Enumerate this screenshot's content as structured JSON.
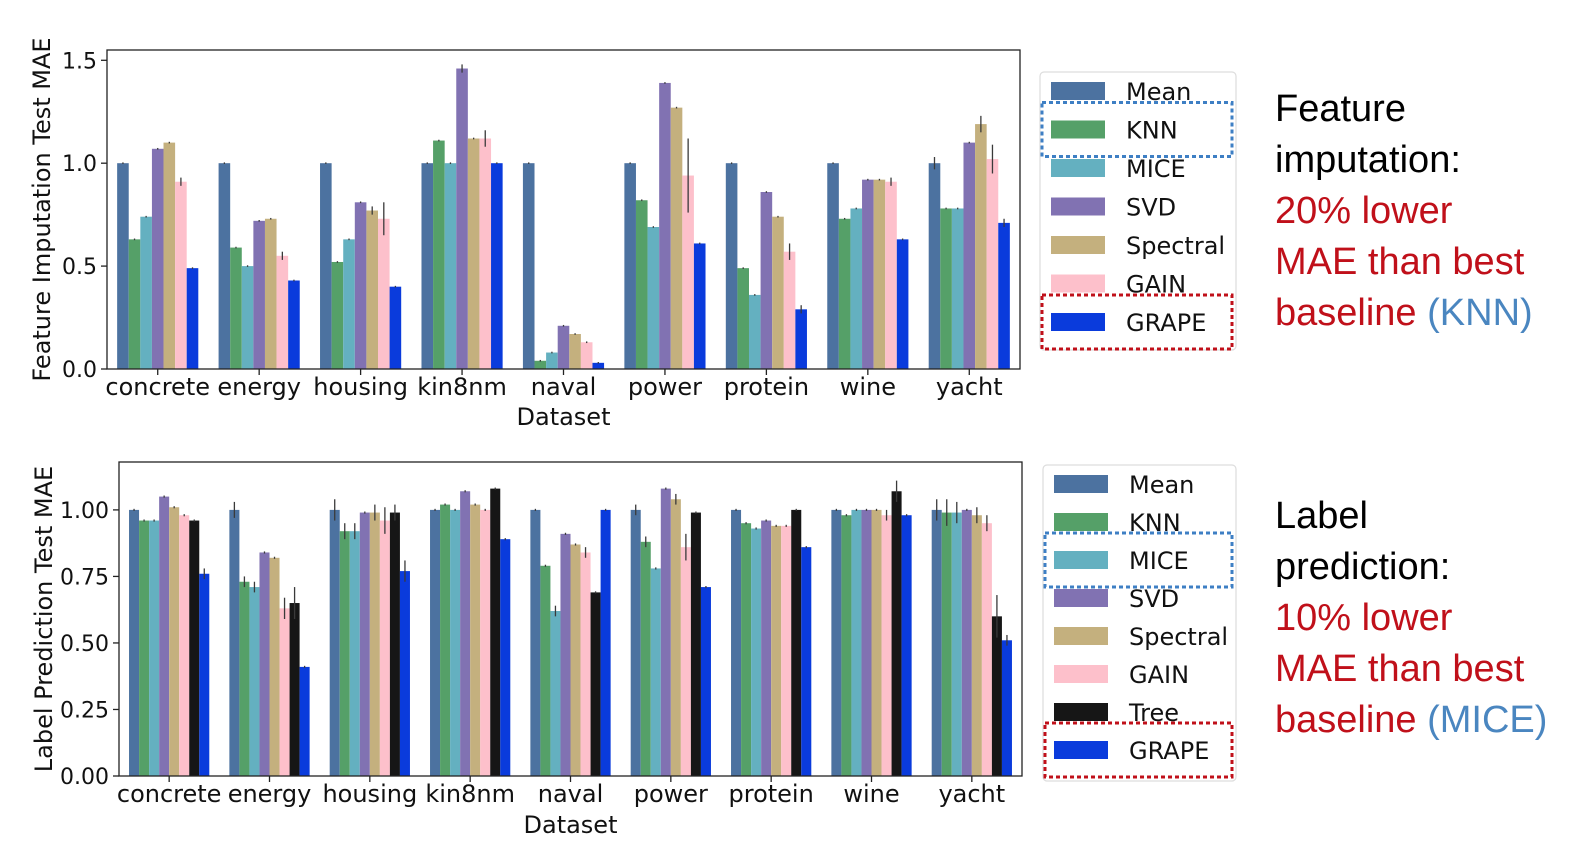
{
  "colors": {
    "Mean": "#4c72a0",
    "KNN": "#55a068",
    "MICE": "#64b0c0",
    "SVD": "#8172b2",
    "Spectral": "#c4b07e",
    "GAIN": "#fdc0cb",
    "Tree": "#161616",
    "GRAPE": "#0a3bdc",
    "highlight_blue": "#3e7fc4",
    "highlight_red": "#c0101a"
  },
  "chart_data": [
    {
      "type": "bar",
      "ylabel": "Feature Imputation Test MAE",
      "xlabel": "Dataset",
      "ylim": [
        0,
        1.55
      ],
      "yticks": [
        "0.0",
        "0.5",
        "1.0",
        "1.5"
      ],
      "ytick_values": [
        0,
        0.5,
        1.0,
        1.5
      ],
      "categories": [
        "concrete",
        "energy",
        "housing",
        "kin8nm",
        "naval",
        "power",
        "protein",
        "wine",
        "yacht"
      ],
      "legend_highlight_blue": "KNN",
      "legend_highlight_red": "GRAPE",
      "series": [
        {
          "name": "Mean",
          "values": [
            1.0,
            1.0,
            1.0,
            1.0,
            1.0,
            1.0,
            1.0,
            1.0,
            1.0
          ],
          "err": [
            0,
            0,
            0,
            0,
            0,
            0,
            0,
            0,
            0.03
          ]
        },
        {
          "name": "KNN",
          "values": [
            0.63,
            0.59,
            0.52,
            1.11,
            0.04,
            0.82,
            0.49,
            0.73,
            0.78
          ],
          "err": [
            0,
            0,
            0,
            0,
            0,
            0,
            0,
            0,
            0
          ]
        },
        {
          "name": "MICE",
          "values": [
            0.74,
            0.5,
            0.63,
            1.0,
            0.08,
            0.69,
            0.36,
            0.78,
            0.78
          ],
          "err": [
            0,
            0,
            0,
            0,
            0,
            0,
            0,
            0,
            0
          ]
        },
        {
          "name": "SVD",
          "values": [
            1.07,
            0.72,
            0.81,
            1.46,
            0.21,
            1.39,
            0.86,
            0.92,
            1.1
          ],
          "err": [
            0,
            0,
            0,
            0.02,
            0,
            0,
            0,
            0,
            0
          ]
        },
        {
          "name": "Spectral",
          "values": [
            1.1,
            0.73,
            0.77,
            1.12,
            0.17,
            1.27,
            0.74,
            0.92,
            1.19
          ],
          "err": [
            0,
            0,
            0.02,
            0,
            0,
            0,
            0,
            0,
            0.04
          ]
        },
        {
          "name": "GAIN",
          "values": [
            0.91,
            0.55,
            0.73,
            1.12,
            0.13,
            0.94,
            0.57,
            0.91,
            1.02
          ],
          "err": [
            0.02,
            0.02,
            0.08,
            0.04,
            0,
            0.18,
            0.04,
            0.02,
            0.07
          ]
        },
        {
          "name": "GRAPE",
          "values": [
            0.49,
            0.43,
            0.4,
            1.0,
            0.03,
            0.61,
            0.29,
            0.63,
            0.71
          ],
          "err": [
            0,
            0,
            0,
            0,
            0,
            0,
            0.02,
            0,
            0.02
          ]
        }
      ]
    },
    {
      "type": "bar",
      "ylabel": "Label Prediction Test MAE",
      "xlabel": "Dataset",
      "ylim": [
        0,
        1.18
      ],
      "yticks": [
        "0.00",
        "0.25",
        "0.50",
        "0.75",
        "1.00"
      ],
      "ytick_values": [
        0,
        0.25,
        0.5,
        0.75,
        1.0
      ],
      "categories": [
        "concrete",
        "energy",
        "housing",
        "kin8nm",
        "naval",
        "power",
        "protein",
        "wine",
        "yacht"
      ],
      "legend_highlight_blue": "MICE",
      "legend_highlight_red": "GRAPE",
      "series": [
        {
          "name": "Mean",
          "values": [
            1.0,
            1.0,
            1.0,
            1.0,
            1.0,
            1.0,
            1.0,
            1.0,
            1.0
          ],
          "err": [
            0,
            0.03,
            0.04,
            0,
            0,
            0.02,
            0,
            0,
            0.04
          ]
        },
        {
          "name": "KNN",
          "values": [
            0.96,
            0.73,
            0.92,
            1.02,
            0.79,
            0.88,
            0.95,
            0.98,
            0.99
          ],
          "err": [
            0,
            0.02,
            0.03,
            0,
            0,
            0.02,
            0,
            0,
            0.05
          ]
        },
        {
          "name": "MICE",
          "values": [
            0.96,
            0.71,
            0.92,
            1.0,
            0.62,
            0.78,
            0.93,
            1.0,
            0.99
          ],
          "err": [
            0,
            0.02,
            0.03,
            0,
            0.02,
            0,
            0,
            0,
            0.04
          ]
        },
        {
          "name": "SVD",
          "values": [
            1.05,
            0.84,
            0.99,
            1.07,
            0.91,
            1.08,
            0.96,
            1.0,
            1.0
          ],
          "err": [
            0,
            0,
            0,
            0,
            0,
            0,
            0,
            0,
            0
          ]
        },
        {
          "name": "Spectral",
          "values": [
            1.01,
            0.82,
            0.99,
            1.02,
            0.87,
            1.04,
            0.94,
            1.0,
            0.98
          ],
          "err": [
            0,
            0,
            0.03,
            0,
            0,
            0.02,
            0,
            0,
            0.03
          ]
        },
        {
          "name": "GAIN",
          "values": [
            0.98,
            0.63,
            0.96,
            1.0,
            0.84,
            0.86,
            0.94,
            0.98,
            0.95
          ],
          "err": [
            0,
            0.04,
            0.05,
            0,
            0.02,
            0.05,
            0,
            0.02,
            0.03
          ]
        },
        {
          "name": "Tree",
          "values": [
            0.96,
            0.65,
            0.99,
            1.08,
            0.69,
            0.99,
            1.0,
            1.07,
            0.6
          ],
          "err": [
            0,
            0.06,
            0.03,
            0,
            0,
            0,
            0,
            0.04,
            0.08
          ]
        },
        {
          "name": "GRAPE",
          "values": [
            0.76,
            0.41,
            0.77,
            0.89,
            1.0,
            0.71,
            0.86,
            0.98,
            0.51
          ],
          "err": [
            0.02,
            0,
            0.04,
            0,
            0,
            0,
            0,
            0,
            0.02
          ]
        }
      ]
    }
  ],
  "callouts": {
    "top": {
      "line1": "Feature",
      "line2": "imputation:",
      "line3": "20% lower",
      "line4": "MAE than best",
      "line5_prefix": "baseline ",
      "line5_highlight": "(KNN)"
    },
    "bottom": {
      "line1": "Label",
      "line2": "prediction:",
      "line3": "10% lower",
      "line4": "MAE than best",
      "line5_prefix": "baseline ",
      "line5_highlight": "(MICE)"
    }
  }
}
